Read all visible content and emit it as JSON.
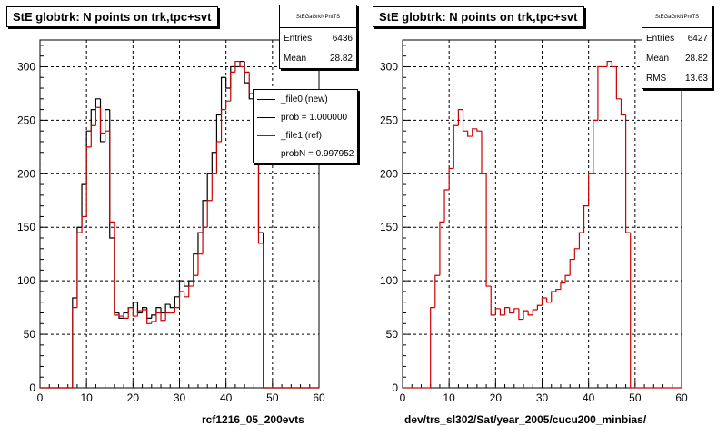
{
  "footer_text": "...",
  "chart_data": [
    {
      "type": "histogram",
      "title": "StE globtrk: N points on trk,tpc+svt",
      "xlabel": "rcf1216_05_200evts",
      "xlim": [
        0,
        60
      ],
      "ylim": [
        0,
        325
      ],
      "xticks": [
        "0",
        "10",
        "20",
        "30",
        "40",
        "50",
        "60"
      ],
      "yticks": [
        "0",
        "50",
        "100",
        "150",
        "200",
        "250",
        "300"
      ],
      "grid": true,
      "bin_width": 1,
      "x_start": 0,
      "stats": {
        "header": "StEGaGrkNPntTS",
        "rows": [
          {
            "label": "Entries",
            "value": "6436"
          },
          {
            "label": "Mean",
            "value": "28.82"
          }
        ]
      },
      "legend_position": "top-right",
      "legend": [
        {
          "label": "_file0 (new)",
          "color": "#000000"
        },
        {
          "label": "prob = 1.000000",
          "color": "#000000"
        },
        {
          "label": "_file1 (ref)",
          "color": "#cc0000"
        },
        {
          "label": "probN = 0.997952",
          "color": "#cc0000"
        }
      ],
      "series": [
        {
          "name": "_file0 (new)",
          "color": "#000000",
          "values": [
            0,
            0,
            0,
            0,
            0,
            0,
            0,
            84,
            150,
            190,
            240,
            260,
            270,
            230,
            260,
            140,
            70,
            65,
            70,
            75,
            80,
            70,
            75,
            65,
            68,
            75,
            70,
            78,
            75,
            85,
            100,
            95,
            100,
            125,
            145,
            175,
            200,
            220,
            255,
            290,
            280,
            300,
            300,
            305,
            285,
            270,
            260,
            145,
            0,
            0,
            0,
            0,
            0,
            0,
            0,
            0,
            0,
            0,
            0,
            0
          ]
        },
        {
          "name": "_file1 (ref)",
          "color": "#cc0000",
          "values": [
            0,
            0,
            0,
            0,
            0,
            0,
            0,
            75,
            145,
            160,
            225,
            245,
            262,
            238,
            240,
            155,
            68,
            67,
            65,
            75,
            67,
            72,
            73,
            60,
            62,
            70,
            63,
            70,
            70,
            75,
            90,
            85,
            95,
            105,
            125,
            150,
            175,
            200,
            230,
            260,
            268,
            295,
            305,
            300,
            295,
            275,
            240,
            135,
            0,
            0,
            0,
            0,
            0,
            0,
            0,
            0,
            0,
            0,
            0,
            0
          ]
        }
      ]
    },
    {
      "type": "histogram",
      "title": "StE globtrk: N points on trk,tpc+svt",
      "xlabel": "dev/trs_sl302/Sat/year_2005/cucu200_minbias/",
      "xlim": [
        0,
        60
      ],
      "ylim": [
        0,
        325
      ],
      "xticks": [
        "0",
        "10",
        "20",
        "30",
        "40",
        "50",
        "60"
      ],
      "yticks": [
        "0",
        "50",
        "100",
        "150",
        "200",
        "250",
        "300"
      ],
      "grid": true,
      "bin_width": 1,
      "x_start": 0,
      "stats": {
        "header": "StEGaGrkNPntTS",
        "rows": [
          {
            "label": "Entries",
            "value": "6427"
          },
          {
            "label": "Mean",
            "value": "28.82"
          },
          {
            "label": "RMS",
            "value": "13.63"
          }
        ]
      },
      "series": [
        {
          "name": "_file1 (ref)",
          "color": "#cc0000",
          "values": [
            0,
            0,
            0,
            0,
            0,
            0,
            75,
            105,
            155,
            185,
            205,
            245,
            260,
            240,
            235,
            242,
            240,
            200,
            95,
            68,
            74,
            68,
            75,
            70,
            74,
            64,
            72,
            68,
            73,
            77,
            84,
            80,
            90,
            92,
            98,
            105,
            120,
            130,
            145,
            170,
            200,
            250,
            300,
            300,
            305,
            300,
            270,
            255,
            145,
            0,
            0,
            0,
            0,
            0,
            0,
            0,
            0,
            0,
            0,
            0
          ]
        }
      ]
    }
  ]
}
